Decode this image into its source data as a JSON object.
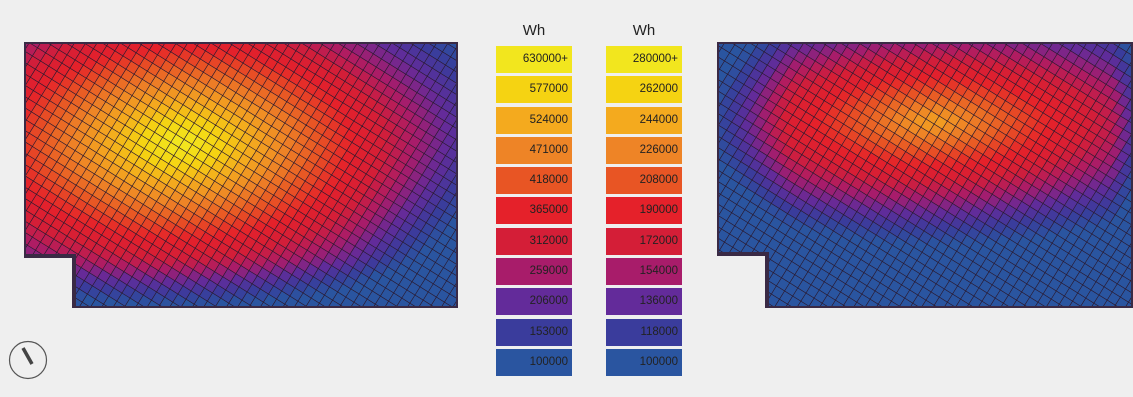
{
  "colors": {
    "background": "#efefef",
    "outline": "#3a2a45",
    "grid_line": "#2a1a30"
  },
  "legends": [
    {
      "unit": "Wh",
      "labels": [
        "630000+",
        "577000",
        "524000",
        "471000",
        "418000",
        "365000",
        "312000",
        "259000",
        "206000",
        "153000",
        "100000"
      ],
      "colors": [
        "#f2e61e",
        "#f5d312",
        "#f4aa1e",
        "#ee8426",
        "#e85524",
        "#e5212a",
        "#d41e37",
        "#a81c6a",
        "#632b9a",
        "#3a3c9c",
        "#2a55a0"
      ]
    },
    {
      "unit": "Wh",
      "labels": [
        "280000+",
        "262000",
        "244000",
        "226000",
        "208000",
        "190000",
        "172000",
        "154000",
        "136000",
        "118000",
        "100000"
      ],
      "colors": [
        "#f2e61e",
        "#f5d312",
        "#f4aa1e",
        "#ee8426",
        "#e85524",
        "#e5212a",
        "#d41e37",
        "#a81c6a",
        "#632b9a",
        "#3a3c9c",
        "#2a55a0"
      ]
    }
  ],
  "chart_data": [
    {
      "type": "heatmap",
      "title": "",
      "unit": "Wh",
      "value_range": [
        100000,
        630000
      ],
      "hotspot": "upper-left-center",
      "cold_area": "lower-right"
    },
    {
      "type": "heatmap",
      "title": "",
      "unit": "Wh",
      "value_range": [
        100000,
        280000
      ],
      "hotspot": "upper-center",
      "cold_area": "lower-left and right edge"
    }
  ],
  "compass": {
    "icon": "north-arrow-icon"
  }
}
